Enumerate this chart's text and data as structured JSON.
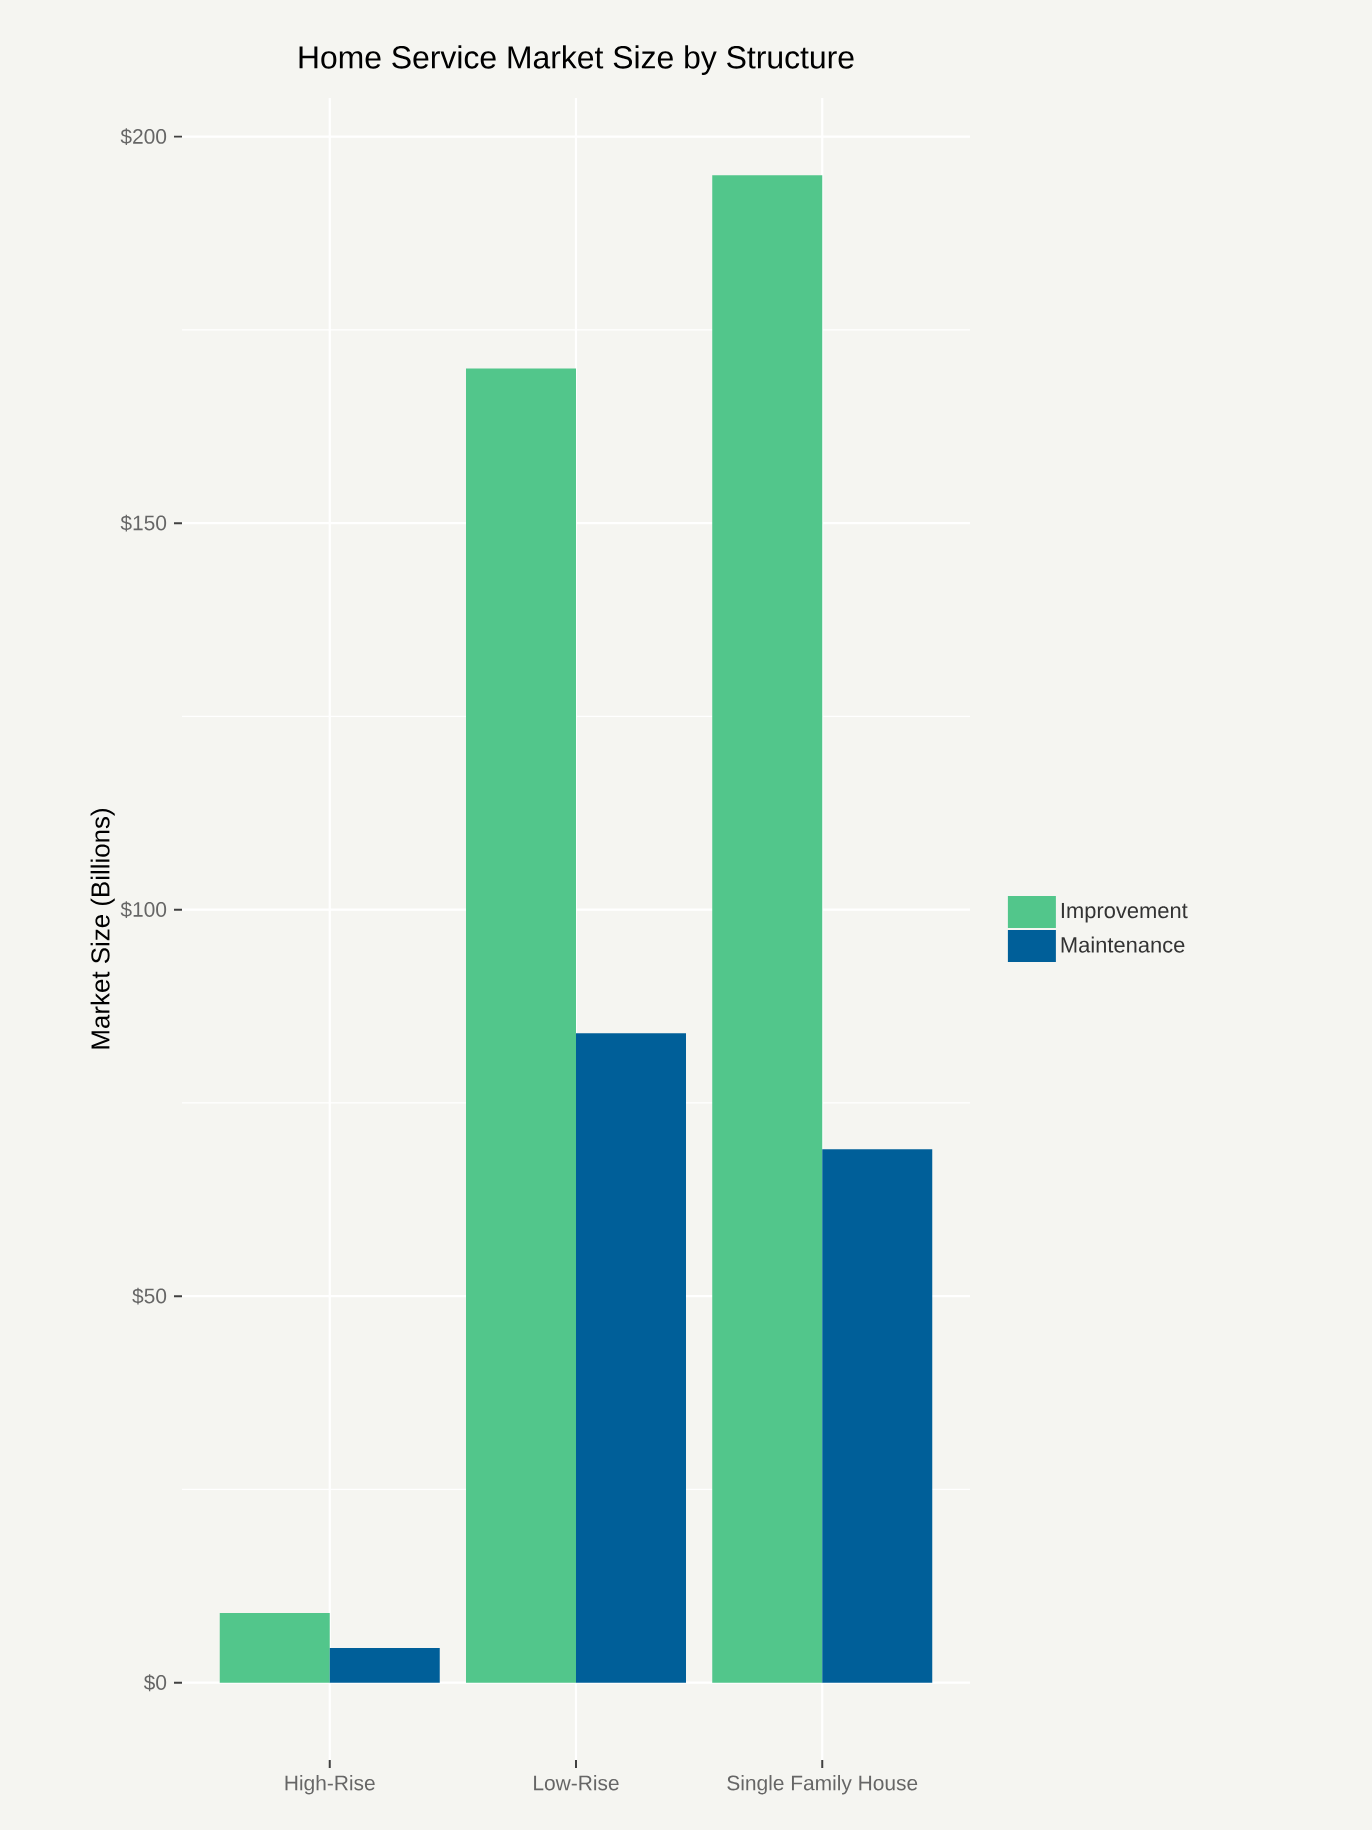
{
  "chart_data": {
    "type": "bar",
    "title": "Home Service Market Size by Structure",
    "ylabel": "Market Size (Billions)",
    "categories": [
      "High-Rise",
      "Low-Rise",
      "Single Family House"
    ],
    "series": [
      {
        "name": "Improvement",
        "color": "#52c68b",
        "values": [
          9,
          170,
          195
        ]
      },
      {
        "name": "Maintenance",
        "color": "#005f99",
        "values": [
          4.5,
          84,
          69
        ]
      }
    ],
    "ylim": [
      -10,
      205
    ],
    "yticks": [
      {
        "value": 0,
        "label": "$0"
      },
      {
        "value": 50,
        "label": "$50"
      },
      {
        "value": 100,
        "label": "$100"
      },
      {
        "value": 150,
        "label": "$150"
      },
      {
        "value": 200,
        "label": "$200"
      }
    ],
    "grid": true,
    "legend": "right"
  }
}
